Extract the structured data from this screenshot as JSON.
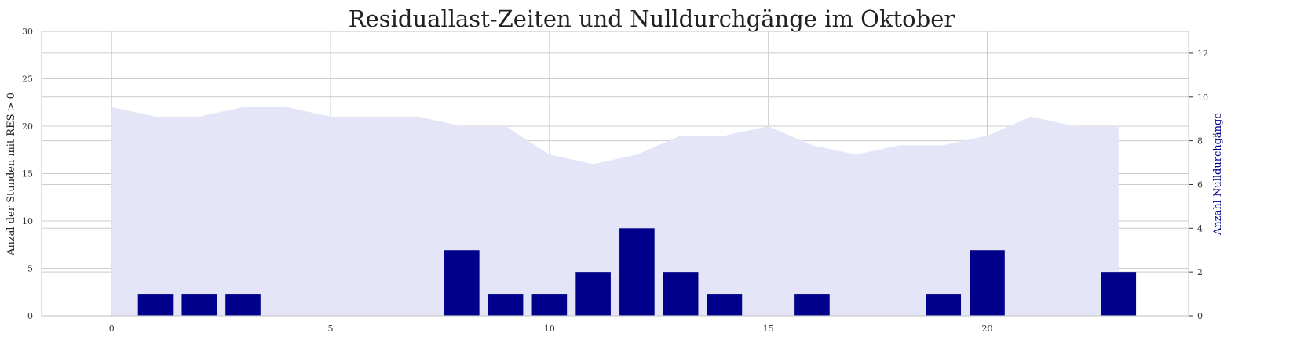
{
  "chart_data": {
    "type": "bar",
    "title": "Residuallast-Zeiten und Nulldurchgänge im Oktober",
    "x_ticks": [
      0,
      5,
      10,
      15,
      20
    ],
    "xlim": [
      -1.6,
      24.6
    ],
    "area_series": {
      "axis": "left",
      "ylabel": "Anzal der Stunden mit RES > 0",
      "ylim": [
        0,
        30
      ],
      "y_ticks": [
        0,
        5,
        10,
        15,
        20,
        25,
        30
      ],
      "color": "#e5e5f8",
      "x": [
        0,
        1,
        2,
        3,
        4,
        5,
        6,
        7,
        8,
        9,
        10,
        11,
        12,
        13,
        14,
        15,
        16,
        17,
        18,
        19,
        20,
        21,
        22,
        23
      ],
      "values": [
        22,
        21,
        21,
        22,
        22,
        21,
        21,
        21,
        20,
        20,
        17,
        16,
        17,
        19,
        19,
        20,
        18,
        17,
        18,
        18,
        19,
        21,
        20,
        20
      ]
    },
    "bar_series": {
      "axis": "right",
      "ylabel": "Anzahl Nulldurchgänge",
      "ylim": [
        0,
        13
      ],
      "y_ticks": [
        0,
        2,
        4,
        6,
        8,
        10,
        12
      ],
      "color": "#00008b",
      "label_color": "#00008b",
      "x": [
        1,
        2,
        3,
        8,
        9,
        10,
        11,
        12,
        13,
        14,
        16,
        19,
        20,
        23
      ],
      "values": [
        1,
        1,
        1,
        3,
        1,
        1,
        2,
        4,
        2,
        1,
        1,
        1,
        3,
        2
      ]
    },
    "grid": true,
    "legend": "none"
  }
}
